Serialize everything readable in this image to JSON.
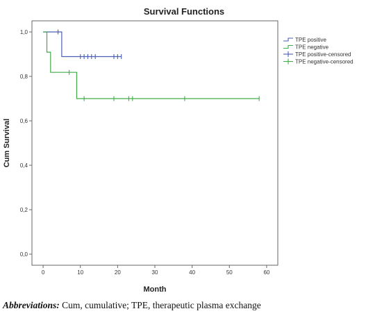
{
  "chart_data": {
    "type": "line",
    "step": true,
    "title": "Survival Functions",
    "xlabel": "Month",
    "ylabel": "Cum Survival",
    "xlim": [
      -3,
      63
    ],
    "ylim": [
      -0.05,
      1.05
    ],
    "xticks": [
      "0",
      "10",
      "20",
      "30",
      "40",
      "50",
      "60"
    ],
    "yticks": [
      "0,0",
      "0,2",
      "0,4",
      "0,6",
      "0,8",
      "1,0"
    ],
    "grid": false,
    "legend_position": "right",
    "series": [
      {
        "name": "TPE positive",
        "color": "#4a5fb5",
        "steps": [
          [
            0,
            1.0
          ],
          [
            5,
            1.0
          ],
          [
            5,
            0.889
          ],
          [
            21,
            0.889
          ]
        ],
        "censored": [
          [
            4,
            1.0
          ],
          [
            10,
            0.889
          ],
          [
            11,
            0.889
          ],
          [
            12,
            0.889
          ],
          [
            13,
            0.889
          ],
          [
            14,
            0.889
          ],
          [
            19,
            0.889
          ],
          [
            20,
            0.889
          ],
          [
            21,
            0.889
          ]
        ]
      },
      {
        "name": "TPE negative",
        "color": "#3fae49",
        "steps": [
          [
            0,
            1.0
          ],
          [
            1,
            1.0
          ],
          [
            1,
            0.909
          ],
          [
            2,
            0.909
          ],
          [
            2,
            0.818
          ],
          [
            9,
            0.818
          ],
          [
            9,
            0.7
          ],
          [
            58,
            0.7
          ]
        ],
        "censored": [
          [
            7,
            0.818
          ],
          [
            11,
            0.7
          ],
          [
            19,
            0.7
          ],
          [
            23,
            0.7
          ],
          [
            24,
            0.7
          ],
          [
            38,
            0.7
          ],
          [
            58,
            0.7
          ]
        ]
      }
    ],
    "legend": [
      {
        "label": "TPE positive",
        "color": "#4a5fb5",
        "kind": "line"
      },
      {
        "label": "TPE negative",
        "color": "#3fae49",
        "kind": "line"
      },
      {
        "label": "TPE positive-censored",
        "color": "#4a5fb5",
        "kind": "marker"
      },
      {
        "label": "TPE negative-censored",
        "color": "#3fae49",
        "kind": "marker"
      }
    ]
  },
  "caption": {
    "label": "Abbreviations:",
    "text": " Cum, cumulative; TPE, therapeutic plasma exchange"
  }
}
